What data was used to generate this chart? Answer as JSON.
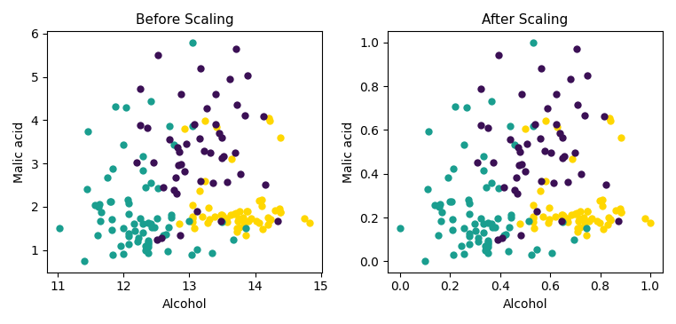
{
  "title_left": "Before Scaling",
  "title_right": "After Scaling",
  "xlabel": "Alcohol",
  "ylabel": "Malic acid",
  "colors": [
    "#ffd700",
    "#1a9e8f",
    "#3b1055"
  ],
  "dot_size": 36,
  "figsize": [
    7.62,
    3.65
  ],
  "dpi": 100
}
